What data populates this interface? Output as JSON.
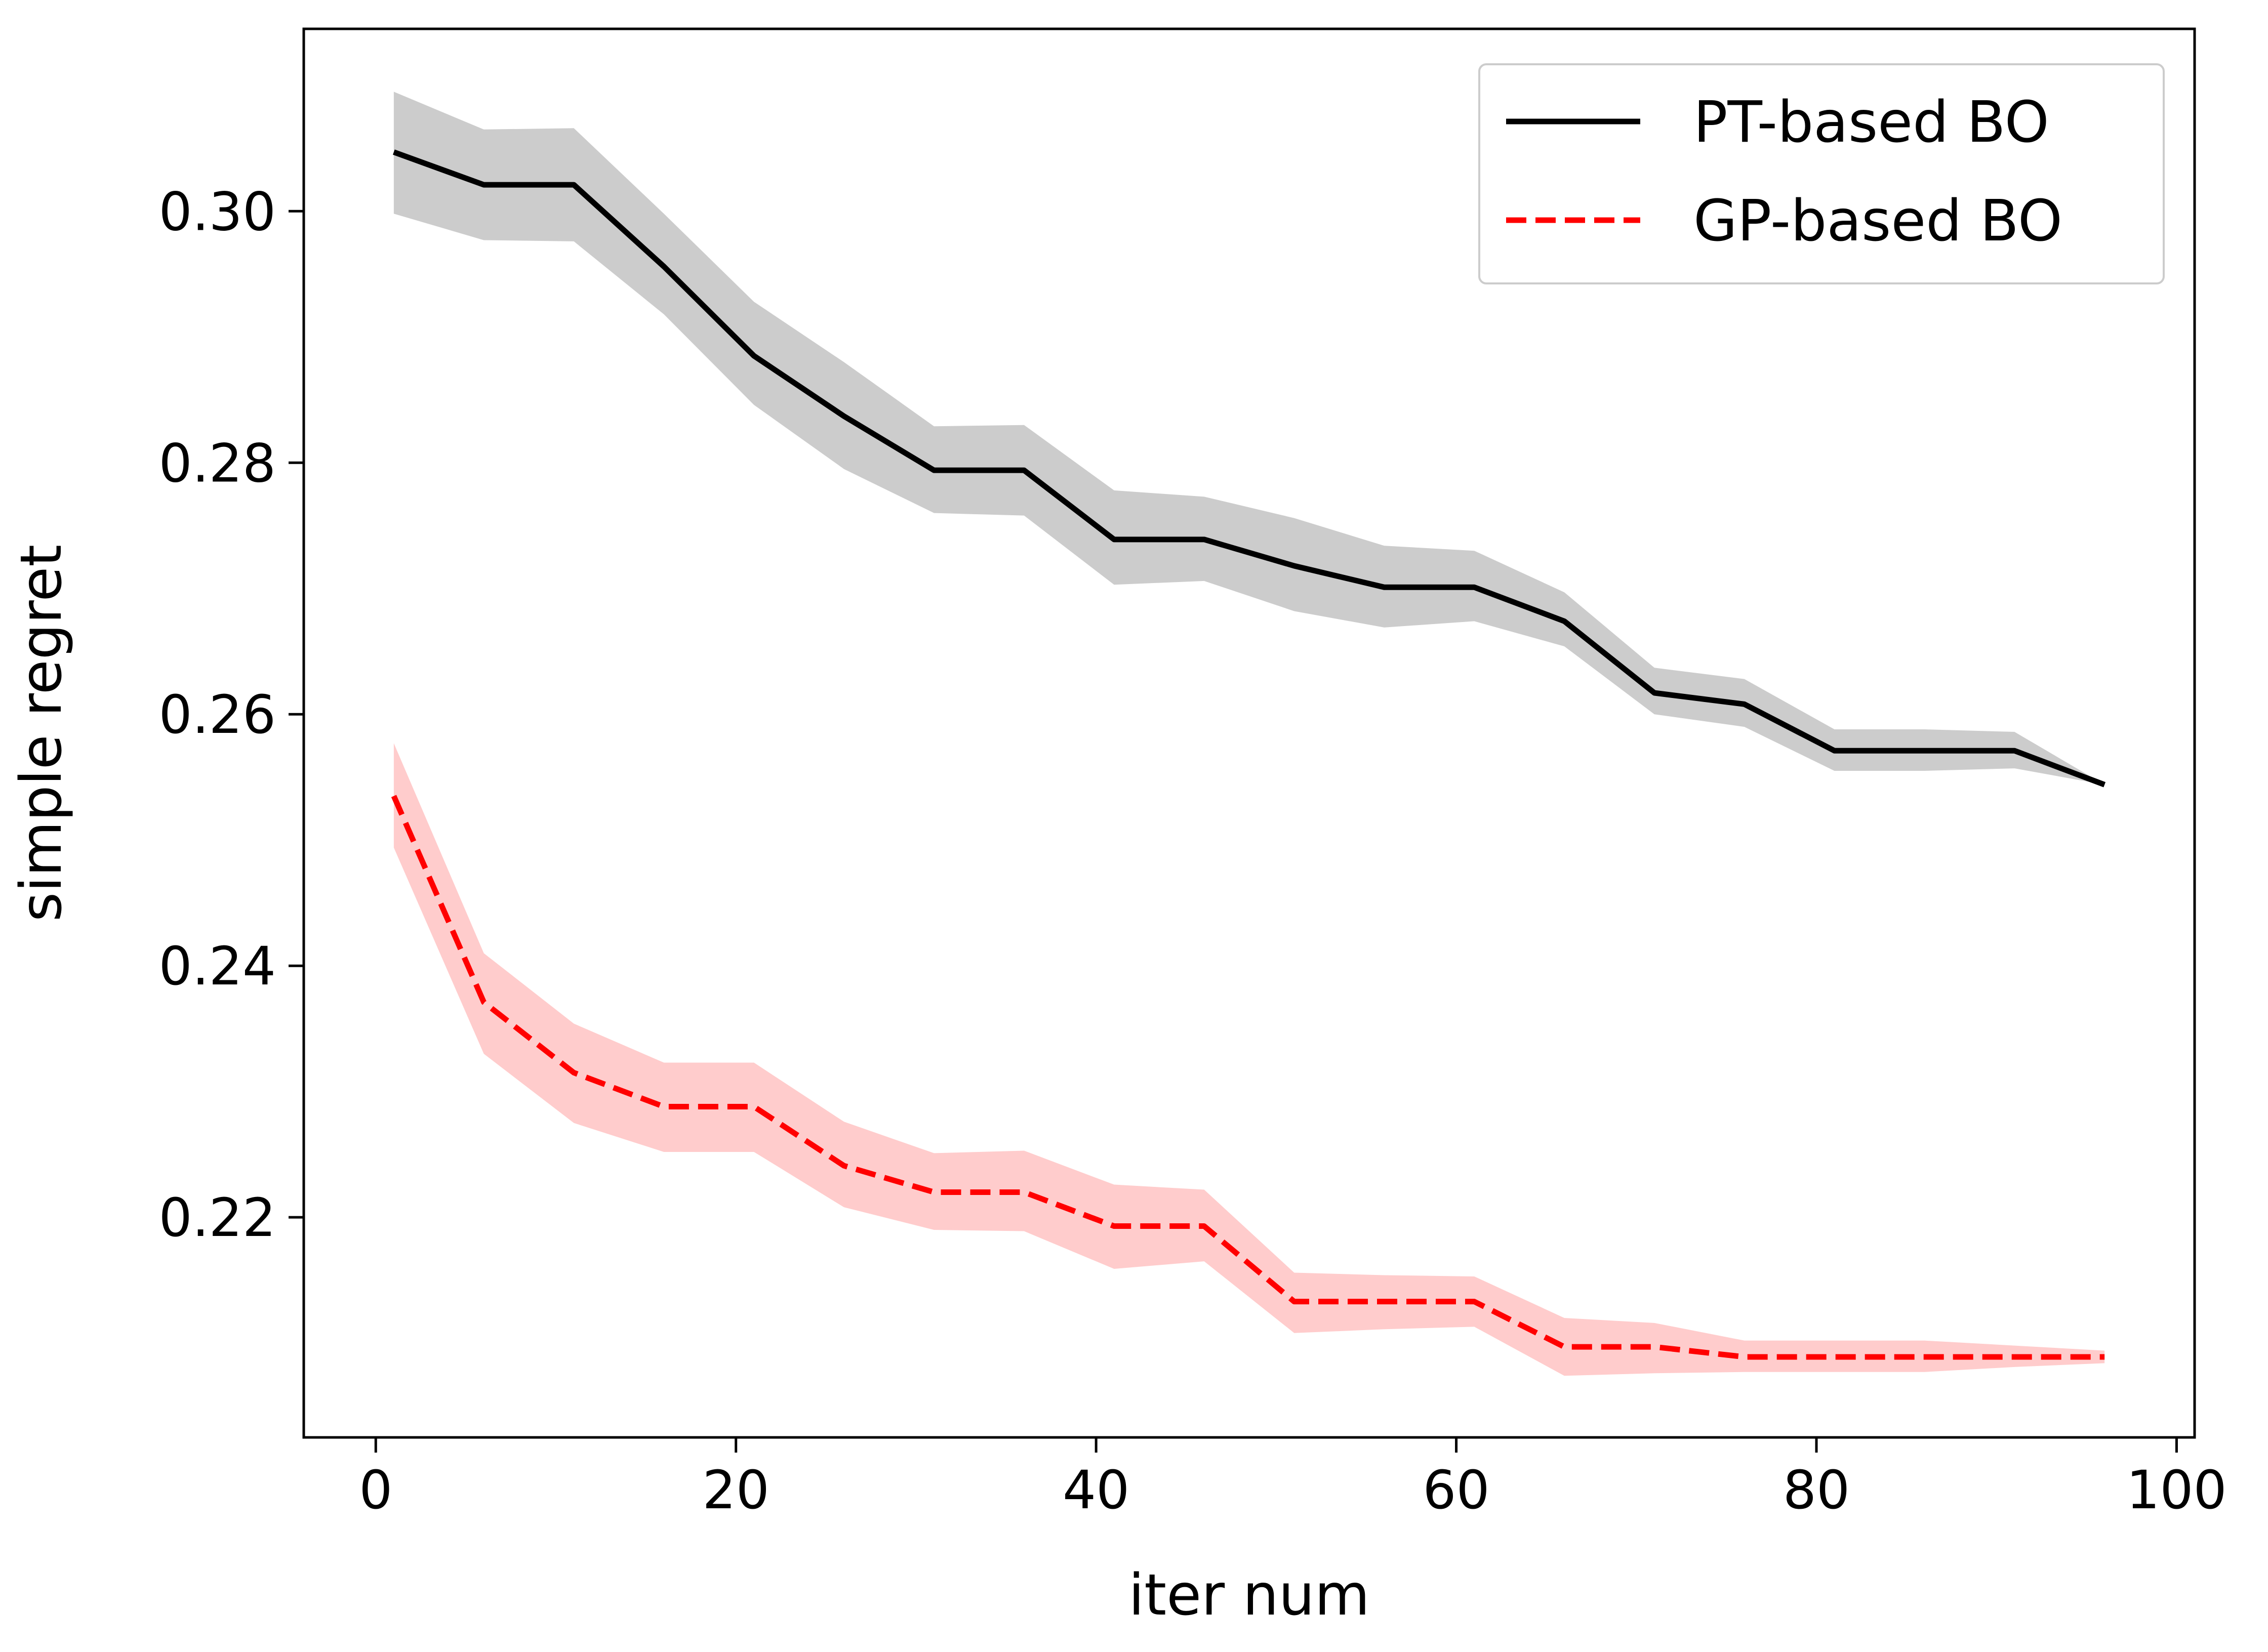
{
  "chart_data": {
    "type": "line",
    "xlabel": "iter num",
    "ylabel": "simple regret",
    "xlim": [
      -4,
      101
    ],
    "ylim": [
      0.2025,
      0.3145
    ],
    "xticks": [
      0,
      20,
      40,
      60,
      80,
      100
    ],
    "xtick_labels": [
      "0",
      "20",
      "40",
      "60",
      "80",
      "100"
    ],
    "yticks": [
      0.22,
      0.24,
      0.26,
      0.28,
      0.3
    ],
    "ytick_labels": [
      "0.22",
      "0.24",
      "0.26",
      "0.28",
      "0.30"
    ],
    "grid": false,
    "legend_position": "top-right",
    "x": [
      1,
      6,
      11,
      16,
      21,
      26,
      31,
      36,
      41,
      46,
      51,
      56,
      61,
      66,
      71,
      76,
      81,
      86,
      91,
      96
    ],
    "series": [
      {
        "name": "PT-based BO",
        "color": "#000000",
        "band_color": "#cccccc",
        "line_style": "solid",
        "values": [
          0.3047,
          0.3021,
          0.3021,
          0.2956,
          0.2885,
          0.2837,
          0.2794,
          0.2794,
          0.2739,
          0.2739,
          0.2718,
          0.2701,
          0.2701,
          0.2674,
          0.2617,
          0.2608,
          0.2571,
          0.2571,
          0.2571,
          0.2544
        ],
        "upper": [
          0.3095,
          0.3065,
          0.3066,
          0.2998,
          0.2928,
          0.288,
          0.2829,
          0.283,
          0.2778,
          0.2773,
          0.2756,
          0.2734,
          0.273,
          0.2697,
          0.2637,
          0.2628,
          0.2588,
          0.2588,
          0.2586,
          0.2544
        ],
        "lower": [
          0.2998,
          0.2977,
          0.2976,
          0.2918,
          0.2846,
          0.2795,
          0.276,
          0.2758,
          0.2703,
          0.2706,
          0.2682,
          0.2669,
          0.2674,
          0.2654,
          0.26,
          0.259,
          0.2555,
          0.2555,
          0.2557,
          0.2544
        ]
      },
      {
        "name": "GP-based BO",
        "color": "#ff0000",
        "band_color": "#ffcccc",
        "line_style": "dashed",
        "values": [
          0.2535,
          0.2371,
          0.2315,
          0.2288,
          0.2288,
          0.2241,
          0.222,
          0.222,
          0.2193,
          0.2193,
          0.2133,
          0.2133,
          0.2133,
          0.2097,
          0.2097,
          0.2089,
          0.2089,
          0.2089,
          0.2089,
          0.2089
        ],
        "upper": [
          0.2577,
          0.241,
          0.2354,
          0.2323,
          0.2323,
          0.2276,
          0.2251,
          0.2253,
          0.2226,
          0.2222,
          0.2156,
          0.2154,
          0.2153,
          0.212,
          0.2116,
          0.2102,
          0.2102,
          0.2102,
          0.2098,
          0.2094
        ],
        "lower": [
          0.2494,
          0.233,
          0.2275,
          0.2252,
          0.2252,
          0.2208,
          0.219,
          0.2189,
          0.2159,
          0.2165,
          0.2108,
          0.2111,
          0.2113,
          0.2074,
          0.2076,
          0.2077,
          0.2077,
          0.2077,
          0.2081,
          0.2084
        ]
      }
    ]
  }
}
